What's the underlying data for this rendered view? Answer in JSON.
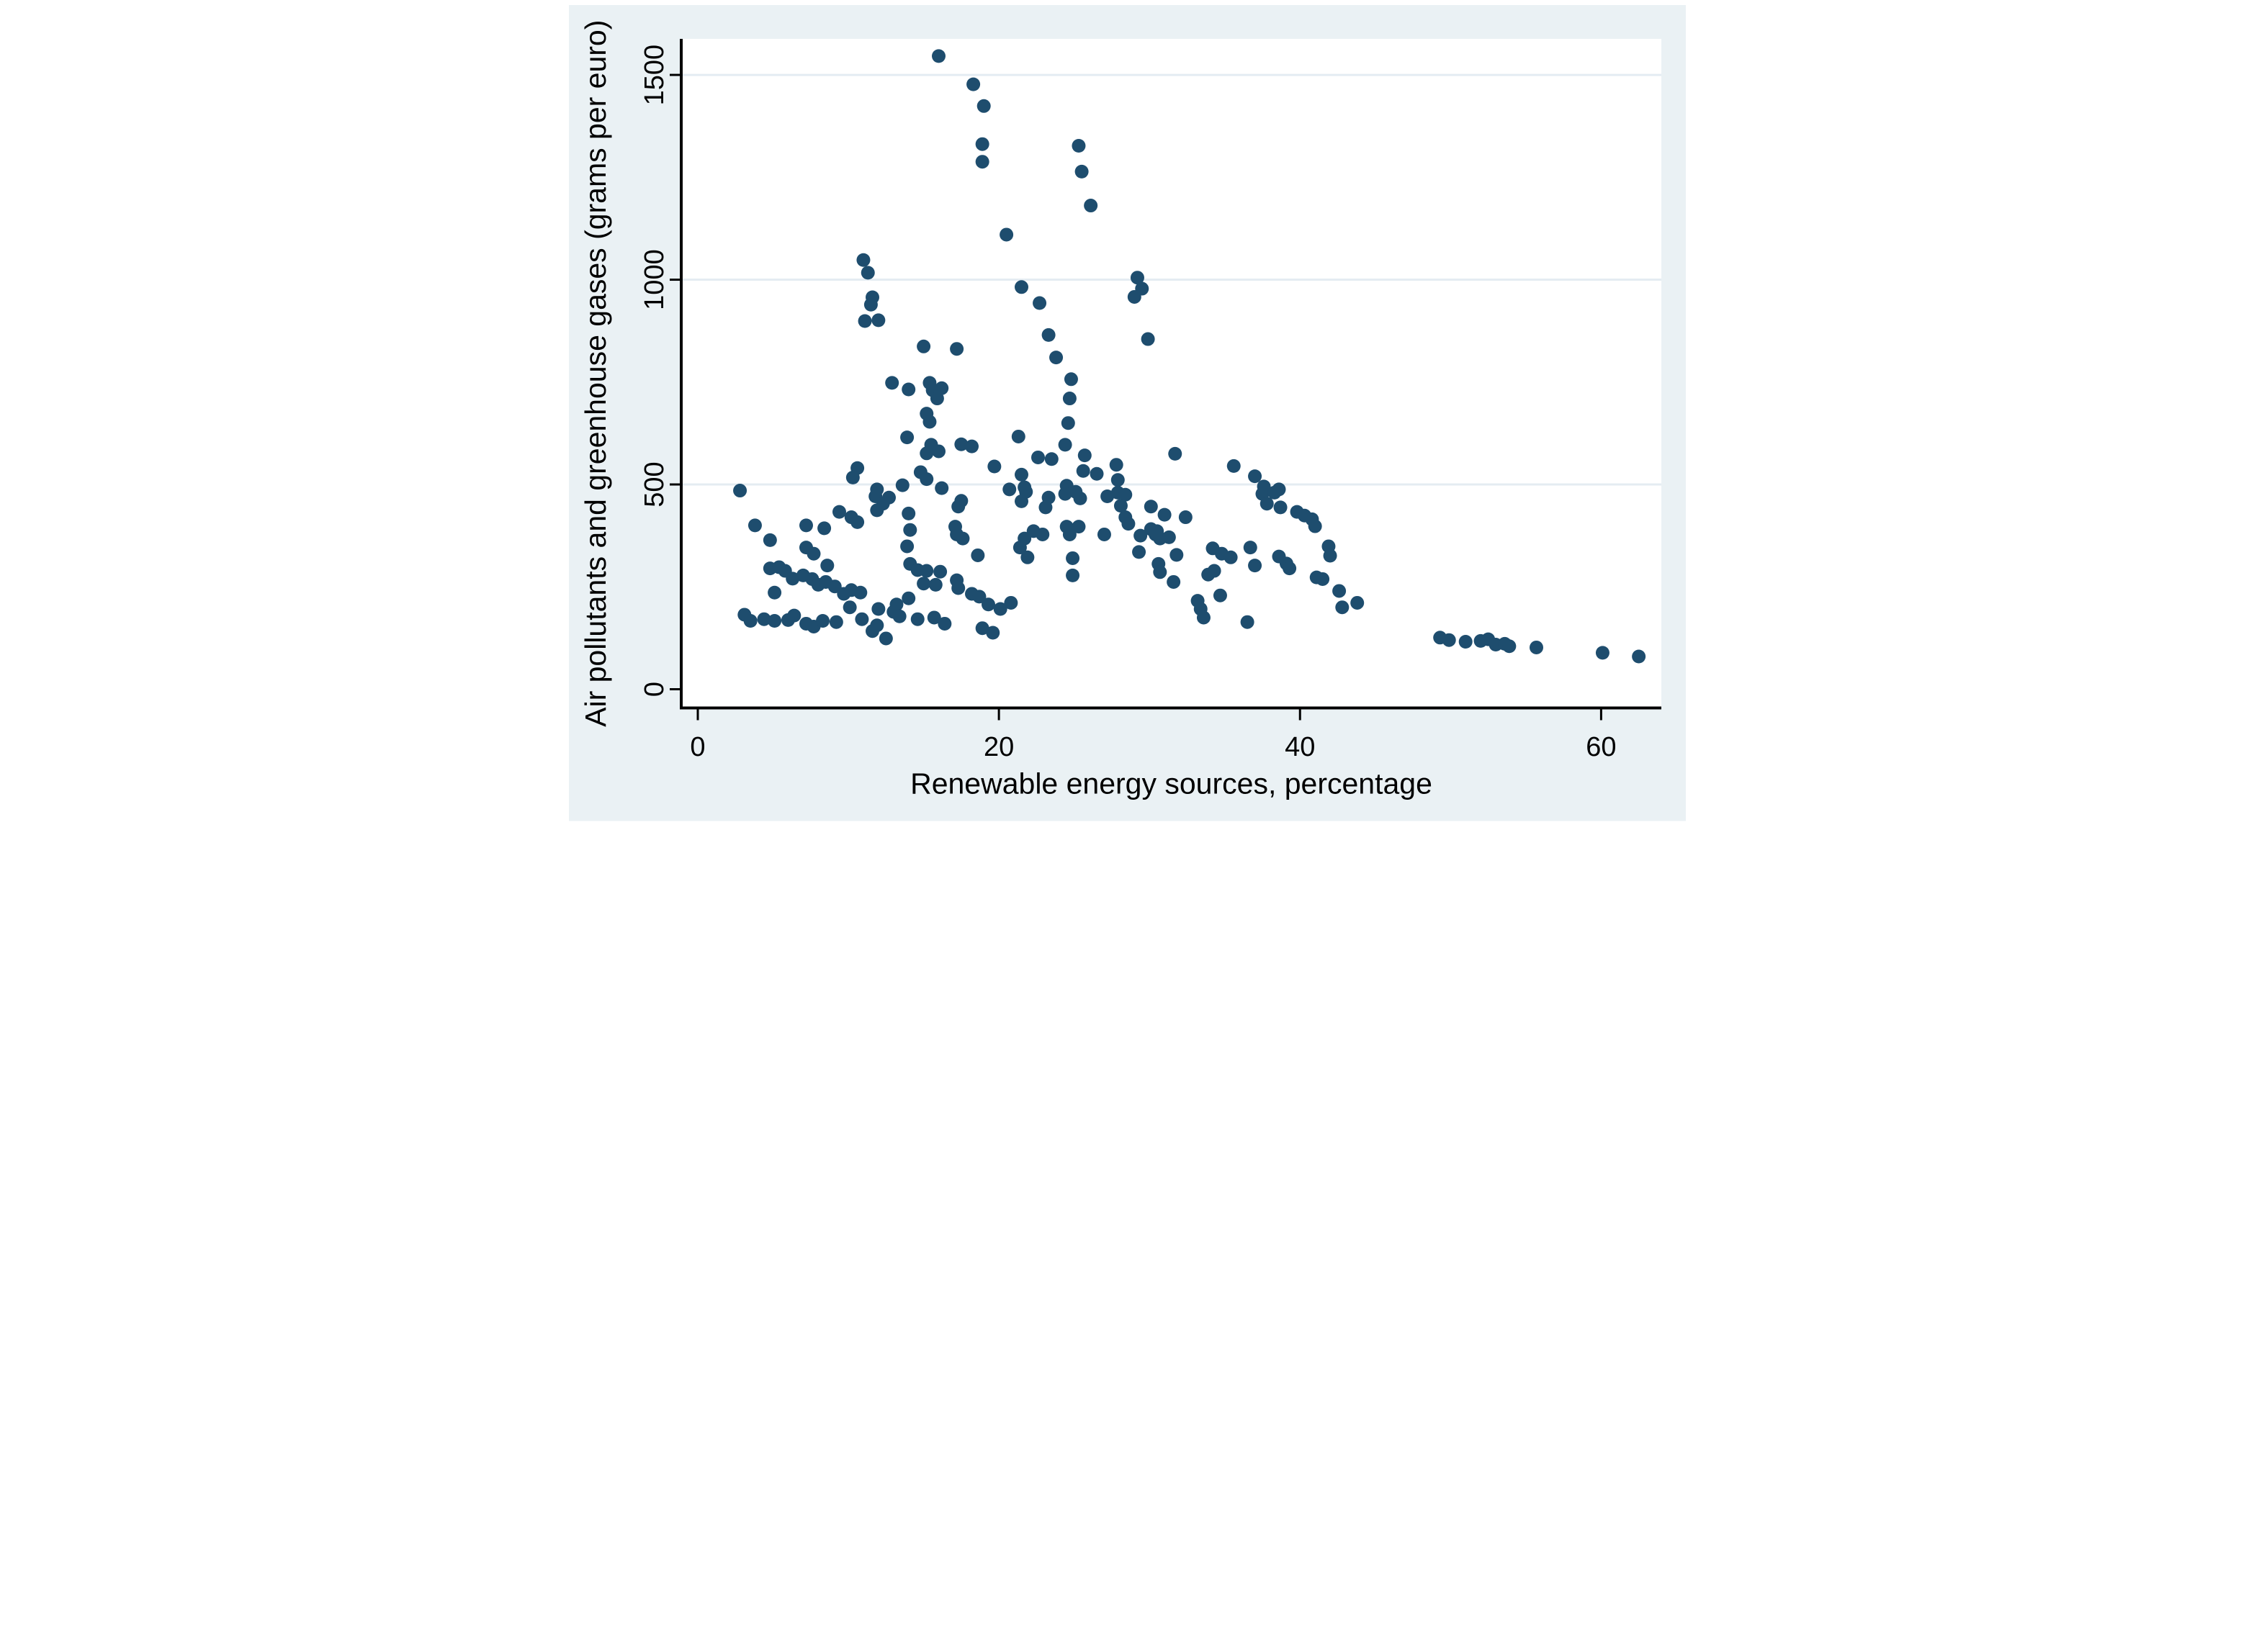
{
  "chart_data": {
    "type": "scatter",
    "title": "",
    "xlabel": "Renewable energy sources, percentage",
    "ylabel": "Air pollutants and greenhouse gases (grams per euro)",
    "xlim": [
      -1.1,
      64.0
    ],
    "ylim": [
      -45.7,
      1588
    ],
    "x_ticks": [
      0,
      20,
      40,
      60
    ],
    "x_tick_labels": [
      "0",
      "20",
      "40",
      "60"
    ],
    "y_ticks": [
      0,
      500,
      1000,
      1500
    ],
    "y_tick_labels": [
      "0",
      "500",
      "1000",
      "1500"
    ],
    "grid_y": [
      500,
      1000,
      1500
    ],
    "grid_on": true,
    "legend": "none",
    "marker_color": "#1e4d6e",
    "marker_radius": 19,
    "background_color": "#eaf1f4",
    "plot_background": "#ffffff",
    "gridline_color": "#e4ecf2",
    "axis_color": "#000000",
    "points": [
      [
        16.0,
        1546
      ],
      [
        18.3,
        1477
      ],
      [
        19.0,
        1424
      ],
      [
        18.9,
        1331
      ],
      [
        18.9,
        1288
      ],
      [
        25.3,
        1327
      ],
      [
        25.5,
        1264
      ],
      [
        26.1,
        1181
      ],
      [
        20.5,
        1110
      ],
      [
        11.0,
        1048
      ],
      [
        11.3,
        1017
      ],
      [
        11.6,
        957
      ],
      [
        11.5,
        939
      ],
      [
        11.1,
        899
      ],
      [
        12.0,
        901
      ],
      [
        21.5,
        982
      ],
      [
        22.7,
        943
      ],
      [
        29.2,
        1005
      ],
      [
        29.5,
        978
      ],
      [
        29.0,
        958
      ],
      [
        23.3,
        865
      ],
      [
        29.9,
        855
      ],
      [
        23.8,
        810
      ],
      [
        15.0,
        837
      ],
      [
        17.2,
        831
      ],
      [
        12.9,
        748
      ],
      [
        14.0,
        732
      ],
      [
        15.4,
        748
      ],
      [
        15.6,
        730
      ],
      [
        16.2,
        735
      ],
      [
        15.9,
        710
      ],
      [
        24.8,
        757
      ],
      [
        24.7,
        710
      ],
      [
        24.6,
        650
      ],
      [
        15.2,
        673
      ],
      [
        15.4,
        653
      ],
      [
        13.9,
        615
      ],
      [
        21.3,
        617
      ],
      [
        15.5,
        597
      ],
      [
        15.2,
        576
      ],
      [
        16.0,
        581
      ],
      [
        17.5,
        598
      ],
      [
        18.2,
        593
      ],
      [
        19.7,
        544
      ],
      [
        10.6,
        540
      ],
      [
        10.3,
        517
      ],
      [
        13.6,
        498
      ],
      [
        16.2,
        491
      ],
      [
        11.9,
        488
      ],
      [
        14.8,
        530
      ],
      [
        15.2,
        513
      ],
      [
        2.8,
        485
      ],
      [
        24.4,
        597
      ],
      [
        25.7,
        571
      ],
      [
        22.6,
        566
      ],
      [
        23.5,
        562
      ],
      [
        25.6,
        533
      ],
      [
        26.5,
        526
      ],
      [
        27.9,
        511
      ],
      [
        27.8,
        548
      ],
      [
        31.7,
        575
      ],
      [
        35.6,
        545
      ],
      [
        37.0,
        520
      ],
      [
        37.6,
        495
      ],
      [
        38.6,
        488
      ],
      [
        21.7,
        493
      ],
      [
        24.5,
        497
      ],
      [
        21.5,
        524
      ],
      [
        20.7,
        488
      ],
      [
        21.5,
        459
      ],
      [
        21.8,
        482
      ],
      [
        23.1,
        444
      ],
      [
        23.3,
        468
      ],
      [
        24.4,
        477
      ],
      [
        25.1,
        482
      ],
      [
        25.4,
        466
      ],
      [
        27.2,
        471
      ],
      [
        27.9,
        480
      ],
      [
        28.4,
        475
      ],
      [
        28.1,
        448
      ],
      [
        28.4,
        420
      ],
      [
        28.6,
        404
      ],
      [
        30.1,
        446
      ],
      [
        31.0,
        426
      ],
      [
        32.4,
        420
      ],
      [
        30.5,
        386
      ],
      [
        30.7,
        368
      ],
      [
        31.3,
        371
      ],
      [
        31.8,
        328
      ],
      [
        30.6,
        306
      ],
      [
        30.7,
        286
      ],
      [
        31.6,
        262
      ],
      [
        22.3,
        386
      ],
      [
        21.7,
        368
      ],
      [
        21.4,
        346
      ],
      [
        21.9,
        322
      ],
      [
        22.9,
        378
      ],
      [
        24.5,
        397
      ],
      [
        25.3,
        397
      ],
      [
        24.7,
        378
      ],
      [
        27.0,
        378
      ],
      [
        24.9,
        320
      ],
      [
        24.9,
        278
      ],
      [
        29.4,
        375
      ],
      [
        30.1,
        391
      ],
      [
        30.4,
        378
      ],
      [
        29.3,
        335
      ],
      [
        33.2,
        216
      ],
      [
        33.4,
        196
      ],
      [
        33.6,
        175
      ],
      [
        34.7,
        229
      ],
      [
        34.8,
        331
      ],
      [
        35.4,
        322
      ],
      [
        34.2,
        344
      ],
      [
        34.3,
        289
      ],
      [
        33.9,
        280
      ],
      [
        36.7,
        346
      ],
      [
        37.0,
        302
      ],
      [
        36.5,
        164
      ],
      [
        38.6,
        324
      ],
      [
        39.1,
        307
      ],
      [
        39.3,
        295
      ],
      [
        37.5,
        477
      ],
      [
        38.3,
        480
      ],
      [
        37.8,
        453
      ],
      [
        38.7,
        444
      ],
      [
        39.8,
        433
      ],
      [
        40.3,
        424
      ],
      [
        40.8,
        415
      ],
      [
        41.0,
        398
      ],
      [
        41.1,
        273
      ],
      [
        41.5,
        269
      ],
      [
        19.3,
        207
      ],
      [
        20.1,
        196
      ],
      [
        20.8,
        211
      ],
      [
        41.9,
        349
      ],
      [
        42.0,
        326
      ],
      [
        42.6,
        240
      ],
      [
        42.8,
        200
      ],
      [
        43.8,
        211
      ],
      [
        49.3,
        126
      ],
      [
        49.9,
        120
      ],
      [
        51.0,
        116
      ],
      [
        52.0,
        118
      ],
      [
        52.5,
        122
      ],
      [
        53.0,
        109
      ],
      [
        53.6,
        111
      ],
      [
        53.9,
        105
      ],
      [
        55.7,
        102
      ],
      [
        60.1,
        89
      ],
      [
        62.5,
        80
      ],
      [
        11.8,
        471
      ],
      [
        12.7,
        468
      ],
      [
        17.5,
        460
      ],
      [
        9.4,
        433
      ],
      [
        10.2,
        420
      ],
      [
        12.3,
        453
      ],
      [
        11.9,
        437
      ],
      [
        14.0,
        429
      ],
      [
        17.3,
        446
      ],
      [
        17.1,
        397
      ],
      [
        3.8,
        400
      ],
      [
        7.2,
        400
      ],
      [
        8.4,
        393
      ],
      [
        10.6,
        408
      ],
      [
        14.1,
        389
      ],
      [
        17.2,
        378
      ],
      [
        4.8,
        364
      ],
      [
        7.2,
        346
      ],
      [
        7.7,
        331
      ],
      [
        13.9,
        349
      ],
      [
        18.6,
        327
      ],
      [
        17.6,
        368
      ],
      [
        4.8,
        295
      ],
      [
        5.4,
        298
      ],
      [
        5.8,
        289
      ],
      [
        7.0,
        278
      ],
      [
        7.6,
        269
      ],
      [
        8.6,
        302
      ],
      [
        14.1,
        306
      ],
      [
        14.6,
        291
      ],
      [
        15.2,
        289
      ],
      [
        16.1,
        287
      ],
      [
        17.2,
        266
      ],
      [
        5.1,
        236
      ],
      [
        8.0,
        255
      ],
      [
        9.1,
        251
      ],
      [
        9.7,
        233
      ],
      [
        10.8,
        236
      ],
      [
        15.0,
        258
      ],
      [
        15.8,
        255
      ],
      [
        17.3,
        247
      ],
      [
        18.2,
        233
      ],
      [
        18.7,
        226
      ],
      [
        10.1,
        200
      ],
      [
        12.0,
        196
      ],
      [
        14.0,
        222
      ],
      [
        13.2,
        207
      ],
      [
        3.1,
        182
      ],
      [
        3.5,
        167
      ],
      [
        4.4,
        171
      ],
      [
        5.1,
        167
      ],
      [
        6.4,
        180
      ],
      [
        6.0,
        169
      ],
      [
        7.2,
        160
      ],
      [
        7.7,
        153
      ],
      [
        8.3,
        167
      ],
      [
        9.2,
        164
      ],
      [
        10.9,
        171
      ],
      [
        11.9,
        156
      ],
      [
        13.0,
        189
      ],
      [
        13.4,
        178
      ],
      [
        14.6,
        171
      ],
      [
        15.7,
        175
      ],
      [
        16.4,
        160
      ],
      [
        18.9,
        149
      ],
      [
        19.6,
        138
      ],
      [
        11.6,
        142
      ],
      [
        12.5,
        124
      ],
      [
        6.3,
        270
      ],
      [
        8.5,
        262
      ],
      [
        10.2,
        242
      ]
    ]
  }
}
